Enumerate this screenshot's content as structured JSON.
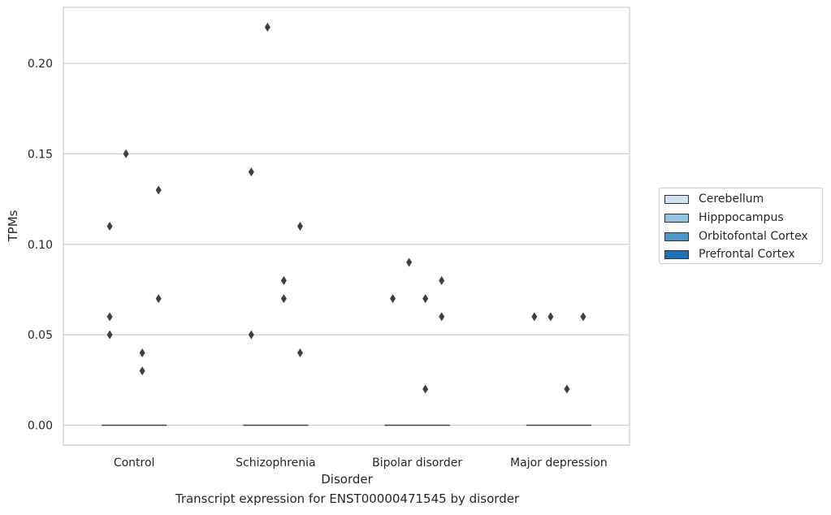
{
  "chart_data": {
    "type": "box",
    "title": "Transcript expression for ENST00000471545 by disorder",
    "xlabel": "Disorder",
    "ylabel": "TPMs",
    "ylim": [
      -0.011,
      0.231
    ],
    "yticks": [
      0.0,
      0.05,
      0.1,
      0.15,
      0.2
    ],
    "ytick_labels": [
      "0.00",
      "0.05",
      "0.10",
      "0.15",
      "0.20"
    ],
    "categories": [
      "Control",
      "Schizophrenia",
      "Bipolar disorder",
      "Major depression"
    ],
    "grid": true,
    "legend_position": "right",
    "series": [
      {
        "name": "Cerebellum",
        "color": "#d0e1f2",
        "median": [
          0.0,
          0.0,
          0.0,
          0.0
        ],
        "outliers": [
          [
            0.11,
            0.06,
            0.05
          ],
          [
            0.14,
            0.05
          ],
          [
            0.07
          ],
          [
            0.06
          ]
        ]
      },
      {
        "name": "Hipppocampus",
        "color": "#94c4df",
        "median": [
          0.0,
          0.0,
          0.0,
          0.0
        ],
        "outliers": [
          [
            0.15
          ],
          [
            0.22
          ],
          [
            0.09
          ],
          [
            0.06
          ]
        ]
      },
      {
        "name": "Orbitofontal Cortex",
        "color": "#4a98c9",
        "median": [
          0.0,
          0.0,
          0.0,
          0.0
        ],
        "outliers": [
          [
            0.04,
            0.03
          ],
          [
            0.08,
            0.07
          ],
          [
            0.07,
            0.02
          ],
          [
            0.02
          ]
        ]
      },
      {
        "name": "Prefrontal Cortex",
        "color": "#2070b4",
        "median": [
          0.0,
          0.0,
          0.0,
          0.0
        ],
        "outliers": [
          [
            0.13,
            0.07
          ],
          [
            0.11,
            0.04
          ],
          [
            0.08,
            0.06
          ],
          [
            0.06
          ]
        ]
      }
    ]
  }
}
